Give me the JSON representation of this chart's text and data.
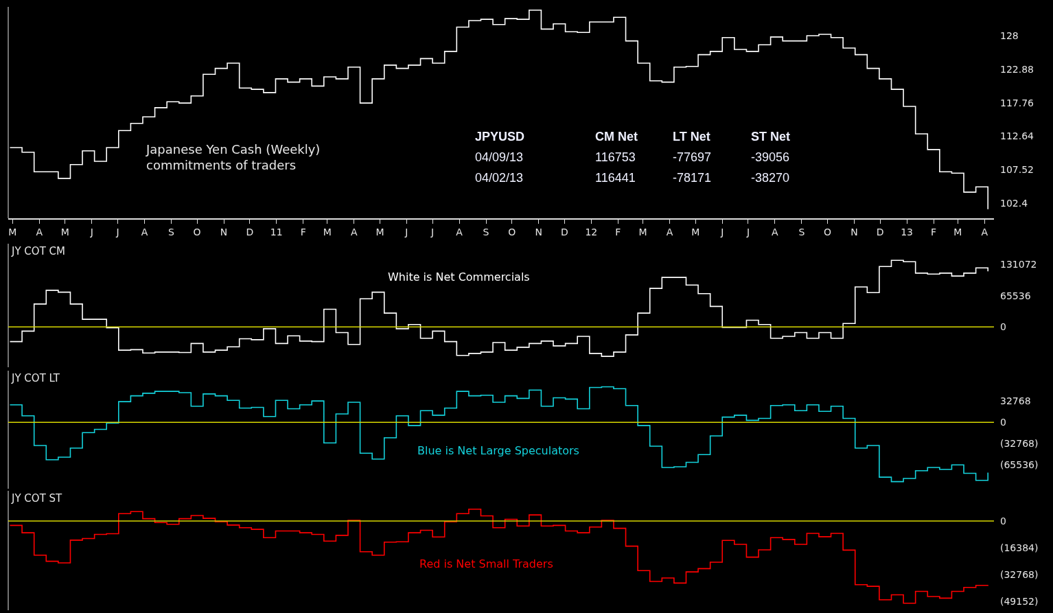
{
  "chart_data": [
    {
      "type": "step",
      "xlim": [
        "2010-02-24",
        "2013-04-12"
      ],
      "ylim": [
        100.1,
        132.4
      ],
      "yticks": [
        102.4,
        107.52,
        112.64,
        117.76,
        122.88,
        128
      ],
      "xticks": [
        {
          "value": "2010-03-01",
          "label": "M"
        },
        {
          "value": "2010-04-01",
          "label": "A"
        },
        {
          "value": "2010-05-01",
          "label": "M"
        },
        {
          "value": "2010-06-01",
          "label": "J"
        },
        {
          "value": "2010-07-01",
          "label": "J"
        },
        {
          "value": "2010-08-01",
          "label": "A"
        },
        {
          "value": "2010-09-01",
          "label": "S"
        },
        {
          "value": "2010-10-01",
          "label": "O"
        },
        {
          "value": "2010-11-01",
          "label": "N"
        },
        {
          "value": "2010-12-01",
          "label": "D"
        },
        {
          "value": "2011-01-01",
          "label": "11"
        },
        {
          "value": "2011-02-01",
          "label": "F"
        },
        {
          "value": "2011-03-01",
          "label": "M"
        },
        {
          "value": "2011-04-01",
          "label": "A"
        },
        {
          "value": "2011-05-01",
          "label": "M"
        },
        {
          "value": "2011-06-01",
          "label": "J"
        },
        {
          "value": "2011-07-01",
          "label": "J"
        },
        {
          "value": "2011-08-01",
          "label": "A"
        },
        {
          "value": "2011-09-01",
          "label": "S"
        },
        {
          "value": "2011-10-01",
          "label": "O"
        },
        {
          "value": "2011-11-01",
          "label": "N"
        },
        {
          "value": "2011-12-01",
          "label": "D"
        },
        {
          "value": "2012-01-01",
          "label": "12"
        },
        {
          "value": "2012-02-01",
          "label": "F"
        },
        {
          "value": "2012-03-01",
          "label": "M"
        },
        {
          "value": "2012-04-01",
          "label": "A"
        },
        {
          "value": "2012-05-01",
          "label": "M"
        },
        {
          "value": "2012-06-01",
          "label": "J"
        },
        {
          "value": "2012-07-01",
          "label": "J"
        },
        {
          "value": "2012-08-01",
          "label": "A"
        },
        {
          "value": "2012-09-01",
          "label": "S"
        },
        {
          "value": "2012-10-01",
          "label": "O"
        },
        {
          "value": "2012-11-01",
          "label": "N"
        },
        {
          "value": "2012-12-01",
          "label": "D"
        },
        {
          "value": "2013-01-01",
          "label": "13"
        },
        {
          "value": "2013-02-01",
          "label": "F"
        },
        {
          "value": "2013-03-01",
          "label": "M"
        },
        {
          "value": "2013-04-01",
          "label": "A"
        }
      ],
      "x": [
        "2010-02-26",
        "2010-03-12",
        "2010-03-26",
        "2010-04-09",
        "2010-04-23",
        "2010-05-07",
        "2010-05-21",
        "2010-06-04",
        "2010-06-18",
        "2010-07-02",
        "2010-07-16",
        "2010-07-30",
        "2010-08-13",
        "2010-08-27",
        "2010-09-10",
        "2010-09-24",
        "2010-10-08",
        "2010-10-22",
        "2010-11-05",
        "2010-11-19",
        "2010-12-03",
        "2010-12-17",
        "2010-12-31",
        "2011-01-14",
        "2011-01-28",
        "2011-02-11",
        "2011-02-25",
        "2011-03-11",
        "2011-03-25",
        "2011-04-08",
        "2011-04-22",
        "2011-05-06",
        "2011-05-20",
        "2011-06-03",
        "2011-06-17",
        "2011-07-01",
        "2011-07-15",
        "2011-07-29",
        "2011-08-12",
        "2011-08-26",
        "2011-09-09",
        "2011-09-23",
        "2011-10-07",
        "2011-10-21",
        "2011-11-04",
        "2011-11-18",
        "2011-12-02",
        "2011-12-16",
        "2011-12-30",
        "2012-01-13",
        "2012-01-27",
        "2012-02-10",
        "2012-02-24",
        "2012-03-09",
        "2012-03-23",
        "2012-04-06",
        "2012-04-20",
        "2012-05-04",
        "2012-05-18",
        "2012-06-01",
        "2012-06-15",
        "2012-06-29",
        "2012-07-13",
        "2012-07-27",
        "2012-08-10",
        "2012-08-24",
        "2012-09-07",
        "2012-09-21",
        "2012-10-05",
        "2012-10-19",
        "2012-11-02",
        "2012-11-16",
        "2012-11-30",
        "2012-12-14",
        "2012-12-28",
        "2013-01-11",
        "2013-01-25",
        "2013-02-08",
        "2013-02-22",
        "2013-03-08",
        "2013-03-22",
        "2013-04-05"
      ],
      "series": [
        {
          "color": "#ffffff",
          "values": [
            110.9,
            110.2,
            107.2,
            107.2,
            106.2,
            108.3,
            110.4,
            108.8,
            110.9,
            113.5,
            114.6,
            115.6,
            117.0,
            117.9,
            117.7,
            118.8,
            122.1,
            123.0,
            123.8,
            120.0,
            119.8,
            119.3,
            121.4,
            120.9,
            121.4,
            120.3,
            121.7,
            121.4,
            123.2,
            117.7,
            121.4,
            123.5,
            123.0,
            123.5,
            124.5,
            123.8,
            125.6,
            129.3,
            130.3,
            130.5,
            129.7,
            130.6,
            130.5,
            131.9,
            129.0,
            129.8,
            128.6,
            128.5,
            130.1,
            130.1,
            130.8,
            127.2,
            123.8,
            121.1,
            120.9,
            123.2,
            123.3,
            125.1,
            125.6,
            127.7,
            125.9,
            125.6,
            126.6,
            127.8,
            127.2,
            127.2,
            128.0,
            128.2,
            127.7,
            126.1,
            125.1,
            123.0,
            121.4,
            119.8,
            117.2,
            113.0,
            110.6,
            107.2,
            107.0,
            104.1,
            104.9,
            101.5
          ]
        }
      ],
      "annotations": [
        "Japanese Yen Cash (Weekly)\ncommitments of traders",
        "JPYUSD",
        "CM Net",
        "LT Net",
        "ST Net",
        "04/09/13",
        "116753",
        "-77697",
        "-39056",
        "04/02/13",
        "116441",
        "-78171",
        "-38270"
      ]
    },
    {
      "type": "step",
      "title": "JY COT CM",
      "tick_labels": "y",
      "xlim": [
        "2010-02-24",
        "2013-04-12"
      ],
      "ylim": [
        -85000,
        175000
      ],
      "yticks": [
        0,
        65536,
        131072
      ],
      "x": [
        "2010-02-26",
        "2010-03-12",
        "2010-03-26",
        "2010-04-09",
        "2010-04-23",
        "2010-05-07",
        "2010-05-21",
        "2010-06-04",
        "2010-06-18",
        "2010-07-02",
        "2010-07-16",
        "2010-07-30",
        "2010-08-13",
        "2010-08-27",
        "2010-09-10",
        "2010-09-24",
        "2010-10-08",
        "2010-10-22",
        "2010-11-05",
        "2010-11-19",
        "2010-12-03",
        "2010-12-17",
        "2010-12-31",
        "2011-01-14",
        "2011-01-28",
        "2011-02-11",
        "2011-02-25",
        "2011-03-11",
        "2011-03-25",
        "2011-04-08",
        "2011-04-22",
        "2011-05-06",
        "2011-05-20",
        "2011-06-03",
        "2011-06-17",
        "2011-07-01",
        "2011-07-15",
        "2011-07-29",
        "2011-08-12",
        "2011-08-26",
        "2011-09-09",
        "2011-09-23",
        "2011-10-07",
        "2011-10-21",
        "2011-11-04",
        "2011-11-18",
        "2011-12-02",
        "2011-12-16",
        "2011-12-30",
        "2012-01-13",
        "2012-01-27",
        "2012-02-10",
        "2012-02-24",
        "2012-03-09",
        "2012-03-23",
        "2012-04-06",
        "2012-04-20",
        "2012-05-04",
        "2012-05-18",
        "2012-06-01",
        "2012-06-15",
        "2012-06-29",
        "2012-07-13",
        "2012-07-27",
        "2012-08-10",
        "2012-08-24",
        "2012-09-07",
        "2012-09-21",
        "2012-10-05",
        "2012-10-19",
        "2012-11-02",
        "2012-11-16",
        "2012-11-30",
        "2012-12-14",
        "2012-12-28",
        "2013-01-11",
        "2013-01-25",
        "2013-02-08",
        "2013-02-22",
        "2013-03-08",
        "2013-03-22",
        "2013-04-05"
      ],
      "series": [
        {
          "color": "#ffffff",
          "values": [
            -31000,
            -9000,
            48000,
            77000,
            73000,
            48000,
            16000,
            16000,
            -2000,
            -49000,
            -48000,
            -55000,
            -53000,
            -53000,
            -54000,
            -35000,
            -53000,
            -49000,
            -42000,
            -25000,
            -27000,
            -4000,
            -35000,
            -19000,
            -30000,
            -31000,
            37000,
            -12000,
            -37000,
            59000,
            73000,
            29000,
            -4000,
            5000,
            -24000,
            -9000,
            -31000,
            -60000,
            -56000,
            -53000,
            -33000,
            -49000,
            -43000,
            -35000,
            -30000,
            -40000,
            -35000,
            -20000,
            -56000,
            -62000,
            -53000,
            -17000,
            29000,
            81000,
            104000,
            104000,
            88000,
            70000,
            43000,
            -1000,
            -1000,
            14000,
            5000,
            -24000,
            -20000,
            -12000,
            -24000,
            -12000,
            -24000,
            7000,
            84000,
            72000,
            127000,
            140000,
            137000,
            113000,
            111000,
            113000,
            107000,
            113000,
            124000,
            117000
          ]
        }
      ],
      "ref_lines": [
        {
          "axis": "y",
          "value": 0,
          "color": "#d8d800"
        }
      ],
      "annotations": [
        "White is Net Commercials"
      ]
    },
    {
      "type": "step",
      "title": "JY COT LT",
      "tick_labels": "y",
      "xlim": [
        "2010-02-24",
        "2013-04-12"
      ],
      "ylim": [
        -103000,
        80000
      ],
      "yticks": [
        32768,
        0,
        {
          "value": -32768,
          "label": "(32768)"
        },
        {
          "value": -65536,
          "label": "(65536)"
        }
      ],
      "x": [
        "2010-02-26",
        "2010-03-12",
        "2010-03-26",
        "2010-04-09",
        "2010-04-23",
        "2010-05-07",
        "2010-05-21",
        "2010-06-04",
        "2010-06-18",
        "2010-07-02",
        "2010-07-16",
        "2010-07-30",
        "2010-08-13",
        "2010-08-27",
        "2010-09-10",
        "2010-09-24",
        "2010-10-08",
        "2010-10-22",
        "2010-11-05",
        "2010-11-19",
        "2010-12-03",
        "2010-12-17",
        "2010-12-31",
        "2011-01-14",
        "2011-01-28",
        "2011-02-11",
        "2011-02-25",
        "2011-03-11",
        "2011-03-25",
        "2011-04-08",
        "2011-04-22",
        "2011-05-06",
        "2011-05-20",
        "2011-06-03",
        "2011-06-17",
        "2011-07-01",
        "2011-07-15",
        "2011-07-29",
        "2011-08-12",
        "2011-08-26",
        "2011-09-09",
        "2011-09-23",
        "2011-10-07",
        "2011-10-21",
        "2011-11-04",
        "2011-11-18",
        "2011-12-02",
        "2011-12-16",
        "2011-12-30",
        "2012-01-13",
        "2012-01-27",
        "2012-02-10",
        "2012-02-24",
        "2012-03-09",
        "2012-03-23",
        "2012-04-06",
        "2012-04-20",
        "2012-05-04",
        "2012-05-18",
        "2012-06-01",
        "2012-06-15",
        "2012-06-29",
        "2012-07-13",
        "2012-07-27",
        "2012-08-10",
        "2012-08-24",
        "2012-09-07",
        "2012-09-21",
        "2012-10-05",
        "2012-10-19",
        "2012-11-02",
        "2012-11-16",
        "2012-11-30",
        "2012-12-14",
        "2012-12-28",
        "2013-01-11",
        "2013-01-25",
        "2013-02-08",
        "2013-02-22",
        "2013-03-08",
        "2013-03-22",
        "2013-04-05"
      ],
      "series": [
        {
          "color": "#14d2dc",
          "values": [
            27000,
            10000,
            -36000,
            -58000,
            -54000,
            -40000,
            -16000,
            -11000,
            -1000,
            32000,
            41000,
            45000,
            48000,
            48000,
            46000,
            25000,
            44000,
            41000,
            34000,
            22000,
            23000,
            9000,
            34000,
            21000,
            27000,
            33000,
            -32000,
            13000,
            31000,
            -48000,
            -57000,
            -24000,
            10000,
            -5000,
            18000,
            11000,
            22000,
            48000,
            41000,
            42000,
            31000,
            41000,
            37000,
            50000,
            25000,
            38000,
            36000,
            21000,
            54000,
            55000,
            52000,
            26000,
            -5000,
            -37000,
            -70000,
            -69000,
            -62000,
            -50000,
            -21000,
            8000,
            11000,
            3000,
            6000,
            26000,
            27000,
            18000,
            27000,
            17000,
            25000,
            6000,
            -40000,
            -36000,
            -85000,
            -92000,
            -87000,
            -75000,
            -70000,
            -73000,
            -66000,
            -79000,
            -90000,
            -78000
          ]
        }
      ],
      "ref_lines": [
        {
          "axis": "y",
          "value": 0,
          "color": "#d8d800"
        }
      ],
      "annotations": [
        "Blue is Net Large Speculators"
      ]
    },
    {
      "type": "step",
      "title": "JY COT ST",
      "tick_labels": "y",
      "xlim": [
        "2010-02-24",
        "2013-04-12"
      ],
      "ylim": [
        -54500,
        18400
      ],
      "yticks": [
        0,
        {
          "value": -16384,
          "label": "(16384)"
        },
        {
          "value": -32768,
          "label": "(32768)"
        },
        {
          "value": -49152,
          "label": "(49152)"
        }
      ],
      "x": [
        "2010-02-26",
        "2010-03-12",
        "2010-03-26",
        "2010-04-09",
        "2010-04-23",
        "2010-05-07",
        "2010-05-21",
        "2010-06-04",
        "2010-06-18",
        "2010-07-02",
        "2010-07-16",
        "2010-07-30",
        "2010-08-13",
        "2010-08-27",
        "2010-09-10",
        "2010-09-24",
        "2010-10-08",
        "2010-10-22",
        "2010-11-05",
        "2010-11-19",
        "2010-12-03",
        "2010-12-17",
        "2010-12-31",
        "2011-01-14",
        "2011-01-28",
        "2011-02-11",
        "2011-02-25",
        "2011-03-11",
        "2011-03-25",
        "2011-04-08",
        "2011-04-22",
        "2011-05-06",
        "2011-05-20",
        "2011-06-03",
        "2011-06-17",
        "2011-07-01",
        "2011-07-15",
        "2011-07-29",
        "2011-08-12",
        "2011-08-26",
        "2011-09-09",
        "2011-09-23",
        "2011-10-07",
        "2011-10-21",
        "2011-11-04",
        "2011-11-18",
        "2011-12-02",
        "2011-12-16",
        "2011-12-30",
        "2012-01-13",
        "2012-01-27",
        "2012-02-10",
        "2012-02-24",
        "2012-03-09",
        "2012-03-23",
        "2012-04-06",
        "2012-04-20",
        "2012-05-04",
        "2012-05-18",
        "2012-06-01",
        "2012-06-15",
        "2012-06-29",
        "2012-07-13",
        "2012-07-27",
        "2012-08-10",
        "2012-08-24",
        "2012-09-07",
        "2012-09-21",
        "2012-10-05",
        "2012-10-19",
        "2012-11-02",
        "2012-11-16",
        "2012-11-30",
        "2012-12-14",
        "2012-12-28",
        "2013-01-11",
        "2013-01-25",
        "2013-02-08",
        "2013-02-22",
        "2013-03-08",
        "2013-03-22",
        "2013-04-05"
      ],
      "series": [
        {
          "color": "#ff0000",
          "values": [
            -2700,
            -7200,
            -20900,
            -24600,
            -25600,
            -11700,
            -10700,
            -8200,
            -7800,
            4500,
            5700,
            1400,
            -1000,
            -2000,
            1400,
            3300,
            1600,
            -400,
            -2500,
            -4100,
            -5100,
            -10200,
            -6100,
            -6100,
            -7200,
            -8200,
            -12300,
            -8800,
            400,
            -18800,
            -20900,
            -12900,
            -12700,
            -7200,
            -5700,
            -9800,
            -400,
            4500,
            7200,
            3100,
            -4100,
            1000,
            -3100,
            3700,
            -3100,
            -2700,
            -6100,
            -7200,
            -3700,
            400,
            -4500,
            -15400,
            -30300,
            -36900,
            -34800,
            -37900,
            -31100,
            -29100,
            -25200,
            -11900,
            -14300,
            -22100,
            -17600,
            -10200,
            -11300,
            -14300,
            -7600,
            -9600,
            -7600,
            -17800,
            -38900,
            -39900,
            -48100,
            -45100,
            -50200,
            -43000,
            -46100,
            -47100,
            -43000,
            -40600,
            -39300,
            -39100
          ]
        }
      ],
      "ref_lines": [
        {
          "axis": "y",
          "value": 0,
          "color": "#d8d800"
        }
      ],
      "annotations": [
        "Red is Net Small Traders"
      ]
    }
  ]
}
